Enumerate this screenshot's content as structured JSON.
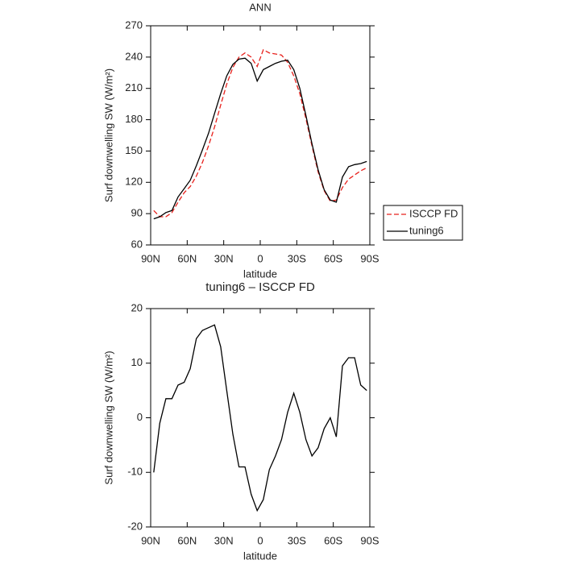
{
  "chart_data": [
    {
      "type": "line",
      "title": "ANN",
      "xlabel": "latitude",
      "ylabel": "Surf downwelling SW (W/m²)",
      "x": [
        87.5,
        82.5,
        77.5,
        72.5,
        67.5,
        62.5,
        57.5,
        52.5,
        47.5,
        42.5,
        37.5,
        32.5,
        27.5,
        22.5,
        17.5,
        12.5,
        7.5,
        2.5,
        -2.5,
        -7.5,
        -12.5,
        -17.5,
        -22.5,
        -27.5,
        -32.5,
        -37.5,
        -42.5,
        -47.5,
        -52.5,
        -57.5,
        -62.5,
        -67.5,
        -72.5,
        -77.5,
        -82.5,
        -87.5
      ],
      "series": [
        {
          "name": "ISCCP FD",
          "color": "#e8211c",
          "linestyle": "dashed",
          "values": [
            93,
            87,
            87,
            91,
            101,
            110,
            116,
            126,
            139,
            155,
            173,
            194,
            214,
            230,
            240,
            244,
            240,
            231,
            247,
            244,
            243,
            242,
            235,
            222,
            205,
            181,
            155,
            130,
            112,
            102,
            103,
            115,
            123,
            127,
            131,
            134
          ]
        },
        {
          "name": "tuning6",
          "color": "#000000",
          "linestyle": "solid",
          "values": [
            85,
            87,
            91,
            93,
            106,
            114,
            122,
            136,
            151,
            167,
            186,
            205,
            222,
            233,
            238,
            239,
            234,
            217,
            228,
            231,
            234,
            236,
            237,
            228,
            210,
            184,
            157,
            132,
            113,
            103,
            101,
            125,
            135,
            137,
            138,
            140
          ]
        }
      ],
      "xlim": [
        90,
        -90
      ],
      "xticks": [
        {
          "value": 90,
          "label": "90N"
        },
        {
          "value": 60,
          "label": "60N"
        },
        {
          "value": 30,
          "label": "30N"
        },
        0,
        {
          "value": -30,
          "label": "30S"
        },
        {
          "value": -60,
          "label": "60S"
        },
        {
          "value": -90,
          "label": "90S"
        }
      ],
      "ylim": [
        60,
        270
      ],
      "yticks": [
        60,
        90,
        120,
        150,
        180,
        210,
        240,
        270
      ],
      "legend": "right"
    },
    {
      "type": "line",
      "title": "tuning6 – ISCCP FD",
      "xlabel": "latitude",
      "ylabel": "Surf downwelling SW (W/m²)",
      "x": [
        87.5,
        82.5,
        77.5,
        72.5,
        67.5,
        62.5,
        57.5,
        52.5,
        47.5,
        42.5,
        37.5,
        32.5,
        27.5,
        22.5,
        17.5,
        12.5,
        7.5,
        2.5,
        -2.5,
        -7.5,
        -12.5,
        -17.5,
        -22.5,
        -27.5,
        -32.5,
        -37.5,
        -42.5,
        -47.5,
        -52.5,
        -57.5,
        -62.5,
        -67.5,
        -72.5,
        -77.5,
        -82.5,
        -87.5
      ],
      "series": [
        {
          "color": "#000000",
          "linestyle": "solid",
          "values": [
            -10,
            -1,
            3.5,
            3.5,
            6,
            6.5,
            9,
            14.5,
            16,
            16.5,
            17,
            13,
            5,
            -3,
            -9,
            -9,
            -14,
            -17,
            -15,
            -9.5,
            -7,
            -4,
            1,
            4.5,
            1,
            -4,
            -7,
            -5.5,
            -2,
            0,
            -3.5,
            9.5,
            11,
            11,
            6,
            5
          ]
        }
      ],
      "xlim": [
        90,
        -90
      ],
      "xticks": [
        {
          "value": 90,
          "label": "90N"
        },
        {
          "value": 60,
          "label": "60N"
        },
        {
          "value": 30,
          "label": "30N"
        },
        0,
        {
          "value": -30,
          "label": "30S"
        },
        {
          "value": -60,
          "label": "60S"
        },
        {
          "value": -90,
          "label": "90S"
        }
      ],
      "ylim": [
        -20,
        20
      ],
      "yticks": [
        -20,
        -10,
        0,
        10,
        20
      ]
    }
  ]
}
